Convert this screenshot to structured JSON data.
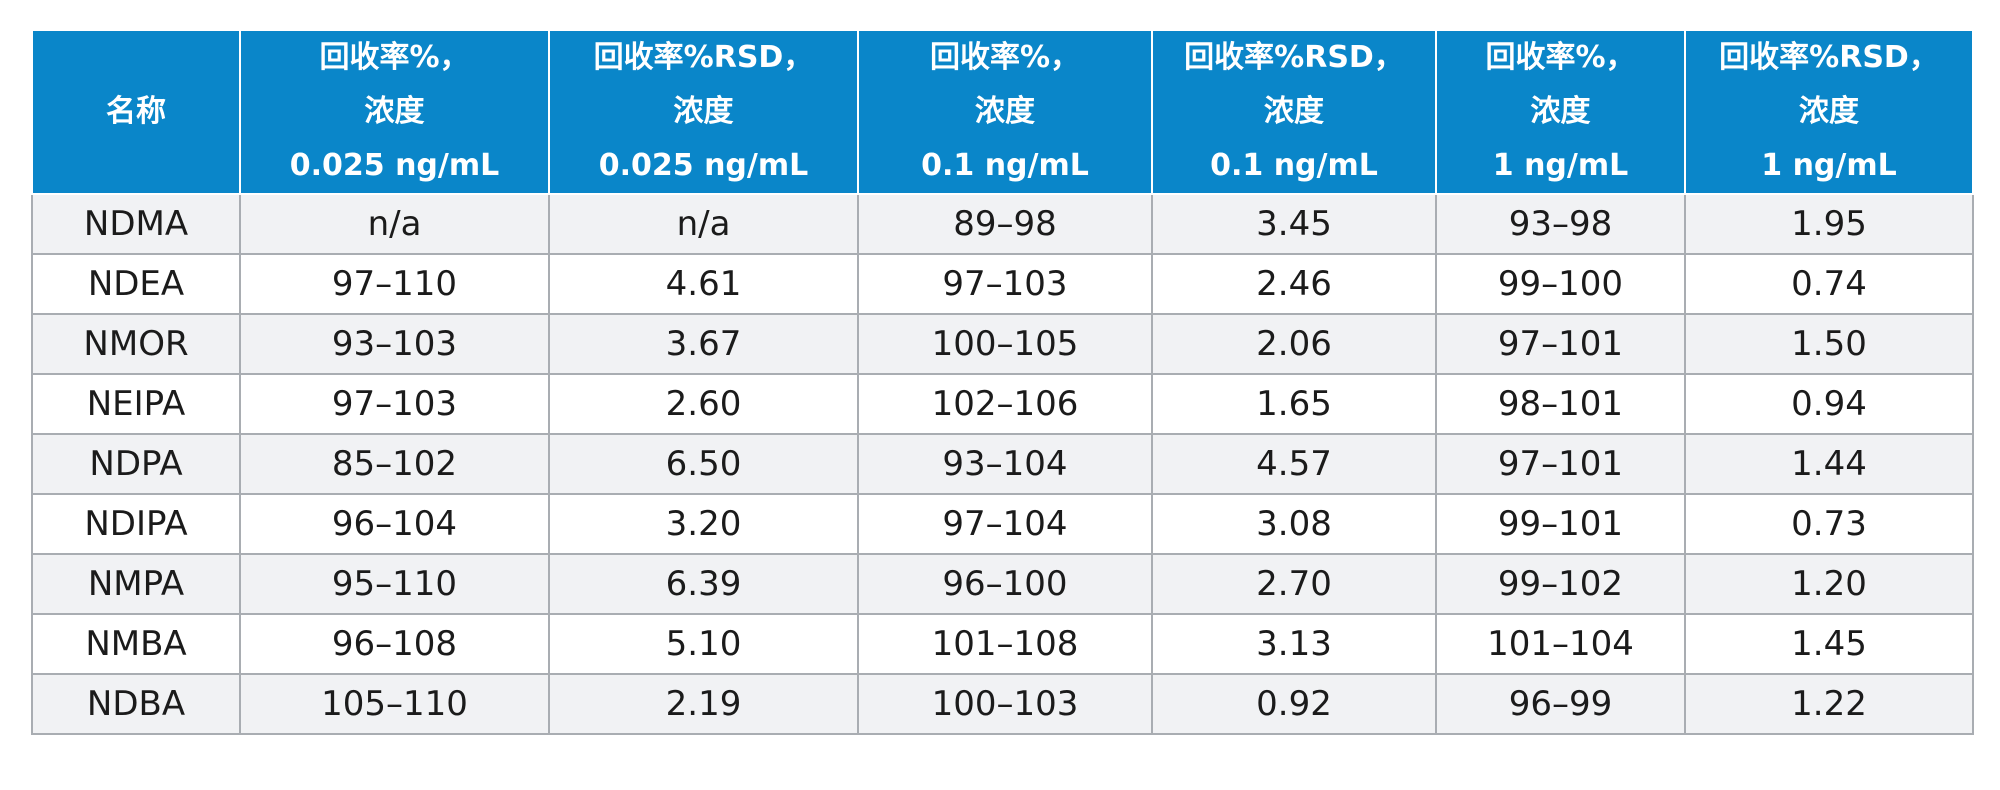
{
  "table": {
    "columns": [
      [
        "名称"
      ],
      [
        "回收率%，",
        "浓度",
        "0.025 ng/mL"
      ],
      [
        "回收率%RSD，",
        "浓度",
        "0.025 ng/mL"
      ],
      [
        "回收率%，",
        "浓度",
        "0.1 ng/mL"
      ],
      [
        "回收率%RSD，",
        "浓度",
        "0.1 ng/mL"
      ],
      [
        "回收率%，",
        "浓度",
        "1 ng/mL"
      ],
      [
        "回收率%RSD，",
        "浓度",
        "1 ng/mL"
      ]
    ],
    "rows": [
      [
        "NDMA",
        "n/a",
        "n/a",
        "89–98",
        "3.45",
        "93–98",
        "1.95"
      ],
      [
        "NDEA",
        "97–110",
        "4.61",
        "97–103",
        "2.46",
        "99–100",
        "0.74"
      ],
      [
        "NMOR",
        "93–103",
        "3.67",
        "100–105",
        "2.06",
        "97–101",
        "1.50"
      ],
      [
        "NEIPA",
        "97–103",
        "2.60",
        "102–106",
        "1.65",
        "98–101",
        "0.94"
      ],
      [
        "NDPA",
        "85–102",
        "6.50",
        "93–104",
        "4.57",
        "97–101",
        "1.44"
      ],
      [
        "NDIPA",
        "96–104",
        "3.20",
        "97–104",
        "3.08",
        "99–101",
        "0.73"
      ],
      [
        "NMPA",
        "95–110",
        "6.39",
        "96–100",
        "2.70",
        "99–102",
        "1.20"
      ],
      [
        "NMBA",
        "96–108",
        "5.10",
        "101–108",
        "3.13",
        "101–104",
        "1.45"
      ],
      [
        "NDBA",
        "105–110",
        "2.19",
        "100–103",
        "0.92",
        "96–99",
        "1.22"
      ]
    ],
    "header_color": "#0a86c9",
    "stripe_color": "#f1f2f4"
  }
}
